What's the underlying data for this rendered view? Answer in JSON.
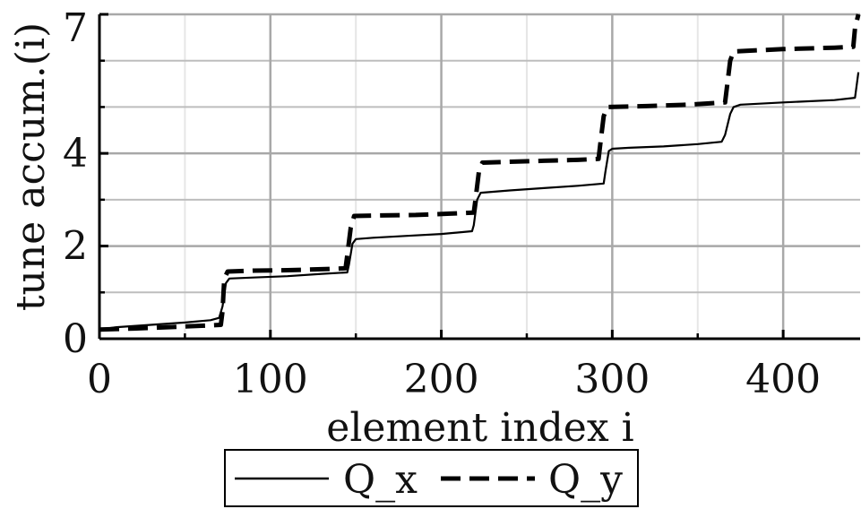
{
  "chart_data": {
    "type": "line",
    "xlabel": "element index i",
    "ylabel": "tune accum.(i)",
    "xlim": [
      0,
      445
    ],
    "ylim": [
      0,
      7
    ],
    "x_ticks": [
      0,
      100,
      200,
      300,
      400
    ],
    "x_tick_labels": [
      "0",
      "100",
      "200",
      "300",
      "400"
    ],
    "y_ticks": [
      0,
      2,
      4,
      7
    ],
    "y_tick_labels": [
      "0",
      "2",
      "4",
      "7"
    ],
    "x_minor_ticks": [
      50,
      150,
      250,
      350
    ],
    "y_minor_ticks": [
      1,
      3,
      5,
      6
    ],
    "grid": true,
    "legend": {
      "position": "bottom-center",
      "entries": [
        "Q_x",
        "Q_y"
      ]
    },
    "series": [
      {
        "name": "Q_x",
        "style": "solid",
        "x": [
          0,
          10,
          30,
          50,
          65,
          70,
          72,
          74,
          76,
          90,
          110,
          130,
          145,
          146,
          148,
          150,
          160,
          180,
          200,
          218,
          219,
          221,
          223,
          240,
          260,
          280,
          295,
          296,
          298,
          300,
          310,
          330,
          350,
          364,
          366,
          369,
          371,
          375,
          400,
          430,
          442,
          444
        ],
        "y": [
          0.2,
          0.25,
          0.3,
          0.35,
          0.4,
          0.45,
          0.7,
          1.2,
          1.3,
          1.32,
          1.35,
          1.4,
          1.43,
          1.6,
          2.05,
          2.15,
          2.18,
          2.22,
          2.26,
          2.32,
          2.45,
          3.0,
          3.15,
          3.2,
          3.25,
          3.3,
          3.35,
          3.6,
          4.05,
          4.1,
          4.12,
          4.15,
          4.2,
          4.25,
          4.4,
          4.85,
          5.0,
          5.05,
          5.1,
          5.15,
          5.2,
          5.75
        ]
      },
      {
        "name": "Q_y",
        "style": "dashed",
        "x": [
          0,
          20,
          40,
          60,
          71,
          72,
          73,
          75,
          90,
          110,
          130,
          144,
          145,
          147,
          149,
          165,
          185,
          205,
          219,
          220,
          222,
          224,
          240,
          260,
          280,
          292,
          293,
          295,
          297,
          320,
          345,
          366,
          367,
          369,
          371,
          400,
          430,
          441,
          442,
          444
        ],
        "y": [
          0.2,
          0.22,
          0.25,
          0.28,
          0.3,
          0.6,
          1.3,
          1.45,
          1.47,
          1.48,
          1.5,
          1.52,
          1.8,
          2.4,
          2.65,
          2.66,
          2.67,
          2.7,
          2.72,
          3.0,
          3.6,
          3.8,
          3.82,
          3.84,
          3.86,
          3.88,
          4.2,
          4.8,
          5.0,
          5.02,
          5.05,
          5.1,
          5.4,
          6.0,
          6.2,
          6.25,
          6.28,
          6.3,
          6.7,
          7.0
        ]
      }
    ]
  }
}
